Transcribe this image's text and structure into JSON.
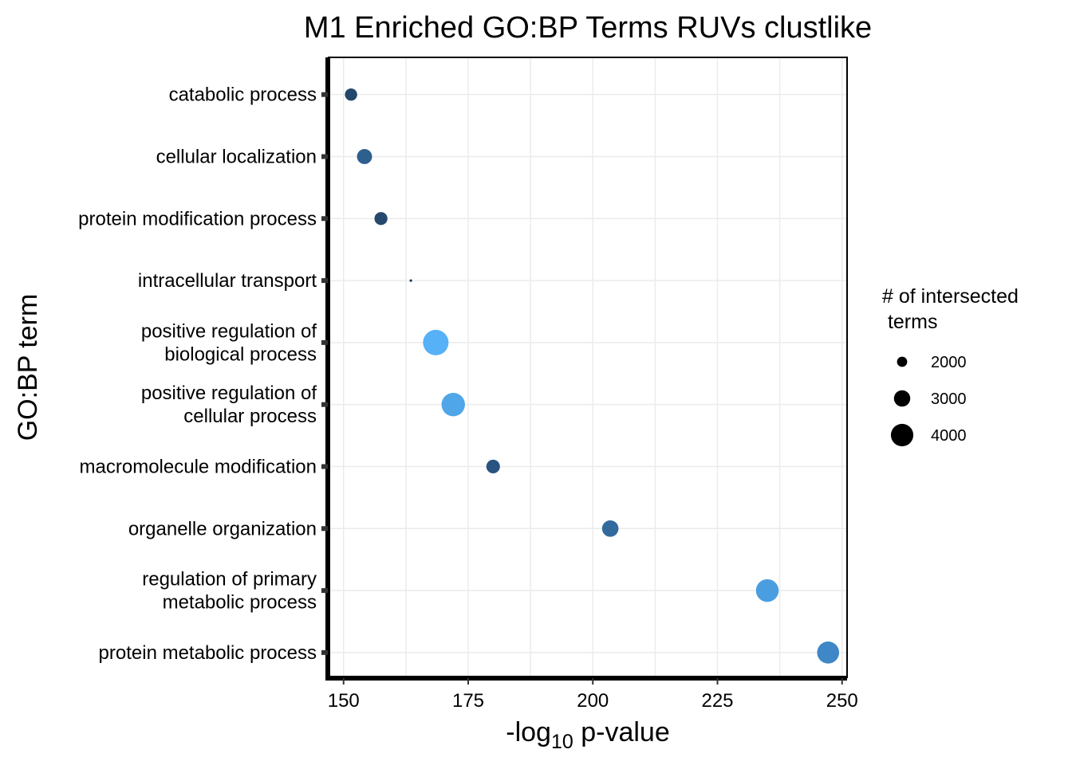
{
  "chart_data": {
    "type": "scatter",
    "title": "M1 Enriched GO:BP Terms RUVs clustlike",
    "xlabel": {
      "prefix": "-log",
      "subscript": "10",
      "suffix": " p-value"
    },
    "ylabel": "GO:BP term",
    "xlim": [
      147,
      251
    ],
    "x_ticks": [
      150,
      175,
      200,
      225,
      250
    ],
    "grid": true,
    "legend": {
      "title_lines": [
        "# of intersected",
        " terms"
      ],
      "position": "right",
      "entries": [
        {
          "label": "2000",
          "value": 2000
        },
        {
          "label": "3000",
          "value": 3000
        },
        {
          "label": "4000",
          "value": 4000
        }
      ]
    },
    "categories": [
      {
        "label_lines": [
          "catabolic process"
        ]
      },
      {
        "label_lines": [
          "cellular localization"
        ]
      },
      {
        "label_lines": [
          "protein modification process"
        ]
      },
      {
        "label_lines": [
          "intracellular transport"
        ]
      },
      {
        "label_lines": [
          "positive regulation of",
          "biological process"
        ]
      },
      {
        "label_lines": [
          "positive regulation of",
          "cellular process"
        ]
      },
      {
        "label_lines": [
          "macromolecule modification"
        ]
      },
      {
        "label_lines": [
          "organelle organization"
        ]
      },
      {
        "label_lines": [
          "regulation of primary",
          "metabolic process"
        ]
      },
      {
        "label_lines": [
          "protein metabolic process"
        ]
      }
    ],
    "points": [
      {
        "x": 151.5,
        "size": 2100,
        "color": "#23476b"
      },
      {
        "x": 154.2,
        "size": 2500,
        "color": "#2e5f8f"
      },
      {
        "x": 157.5,
        "size": 2200,
        "color": "#24496d"
      },
      {
        "x": 163.5,
        "size": 700,
        "color": "#1c3857"
      },
      {
        "x": 168.5,
        "size": 4000,
        "color": "#56b1f7"
      },
      {
        "x": 172.0,
        "size": 3700,
        "color": "#4fa6e8"
      },
      {
        "x": 180.0,
        "size": 2300,
        "color": "#2a5480"
      },
      {
        "x": 203.5,
        "size": 2700,
        "color": "#336a9e"
      },
      {
        "x": 235.0,
        "size": 3600,
        "color": "#4a9ee0"
      },
      {
        "x": 247.2,
        "size": 3500,
        "color": "#3f87c6"
      }
    ]
  }
}
